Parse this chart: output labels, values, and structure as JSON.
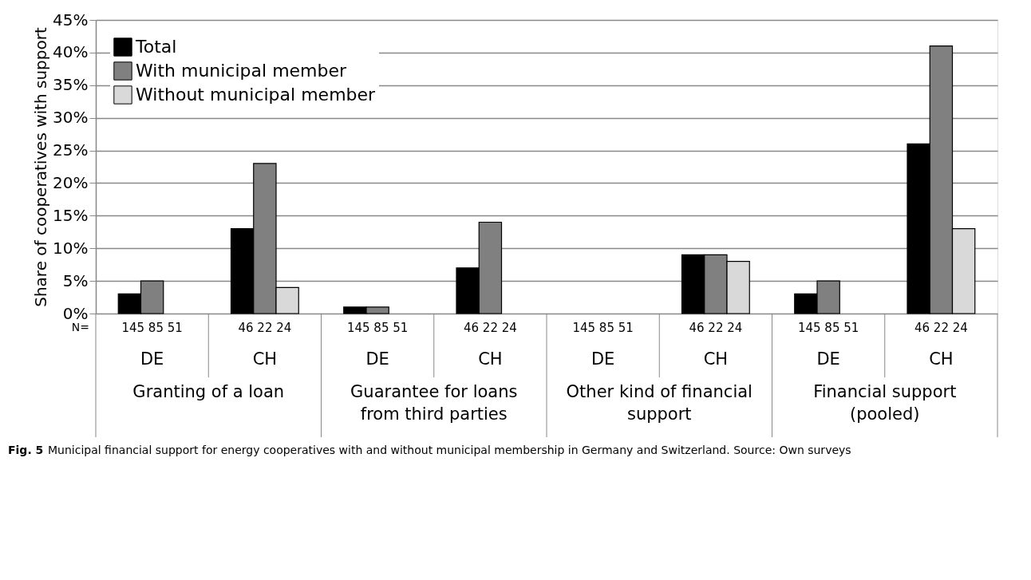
{
  "chart_data": {
    "type": "bar",
    "categories": [
      "DE",
      "CH",
      "DE",
      "CH",
      "DE",
      "CH",
      "DE",
      "CH"
    ],
    "ylabel": "Share of cooperatives with support",
    "series": [
      {
        "name": "Total",
        "color": "#000000",
        "values": [
          3,
          13,
          1,
          7,
          0,
          9,
          3,
          26
        ]
      },
      {
        "name": "With municipal member",
        "color": "#808080",
        "values": [
          5,
          23,
          1,
          14,
          0,
          9,
          5,
          41
        ]
      },
      {
        "name": "Without municipal member",
        "color": "#d9d9d9",
        "values": [
          0,
          4,
          0,
          0,
          0,
          8,
          0,
          13
        ]
      }
    ],
    "ylim": [
      0,
      45
    ],
    "yticks": [
      {
        "value": 0,
        "label": "0%"
      },
      {
        "value": 5,
        "label": "5%"
      },
      {
        "value": 10,
        "label": "10%"
      },
      {
        "value": 15,
        "label": "15%"
      },
      {
        "value": 20,
        "label": "20%"
      },
      {
        "value": 25,
        "label": "25%"
      },
      {
        "value": 30,
        "label": "30%"
      },
      {
        "value": 35,
        "label": "35%"
      },
      {
        "value": 40,
        "label": "40%"
      },
      {
        "value": 45,
        "label": "45%"
      }
    ],
    "grid": "y",
    "legend": "top left",
    "annotations": [
      "N=",
      "145 85 51",
      "46 22 24",
      "145 85 51",
      "46 22 24",
      "145 85 51",
      "46 22 24",
      "145 85 51",
      "46 22 24",
      "Granting of a loan",
      "Guarantee for loans from third parties",
      "Other kind of financial support",
      "Financial support (pooled)",
      "Fig. 5",
      "Municipal financial support for energy cooperatives with and without municipal membership in Germany and Switzerland. Source: Own surveys"
    ]
  }
}
